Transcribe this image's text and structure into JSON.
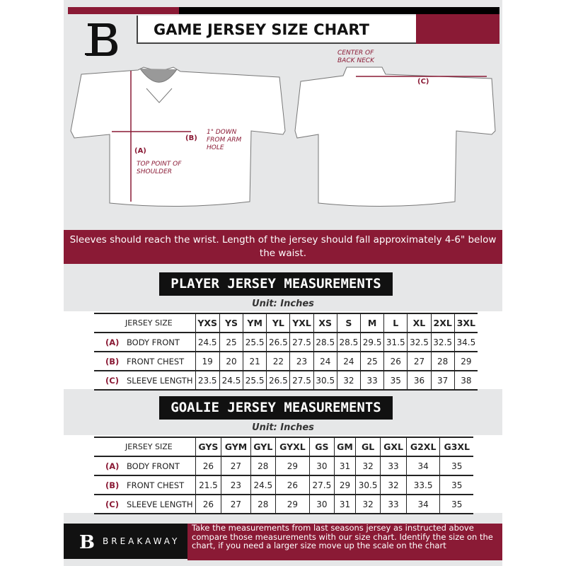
{
  "header": {
    "title": "GAME JERSEY SIZE CHART",
    "logo_letter": "B"
  },
  "diagram": {
    "front_labels": {
      "a_marker": "(A)",
      "a_note": "TOP POINT OF SHOULDER",
      "b_marker": "(B)",
      "b_note": "1\" DOWN FROM ARM HOLE"
    },
    "back_labels": {
      "c_marker": "(C)",
      "c_note": "CENTER OF BACK NECK"
    }
  },
  "banner": {
    "text": "Sleeves should reach the wrist. Length of the jersey should fall approximately 4-6\" below the waist."
  },
  "player": {
    "title": "PLAYER JERSEY MEASUREMENTS",
    "unit": "Unit: Inches",
    "size_header": "JERSEY SIZE",
    "sizes": [
      "YXS",
      "YS",
      "YM",
      "YL",
      "YXL",
      "XS",
      "S",
      "M",
      "L",
      "XL",
      "2XL",
      "3XL"
    ],
    "rows": [
      {
        "letter": "(A)",
        "label": "BODY FRONT",
        "values": [
          "24.5",
          "25",
          "25.5",
          "26.5",
          "27.5",
          "28.5",
          "28.5",
          "29.5",
          "31.5",
          "32.5",
          "32.5",
          "34.5"
        ]
      },
      {
        "letter": "(B)",
        "label": "FRONT CHEST",
        "values": [
          "19",
          "20",
          "21",
          "22",
          "23",
          "24",
          "24",
          "25",
          "26",
          "27",
          "28",
          "29"
        ]
      },
      {
        "letter": "(C)",
        "label": "SLEEVE LENGTH",
        "values": [
          "23.5",
          "24.5",
          "25.5",
          "26.5",
          "27.5",
          "30.5",
          "32",
          "33",
          "35",
          "36",
          "37",
          "38"
        ]
      }
    ]
  },
  "goalie": {
    "title": "GOALIE JERSEY MEASUREMENTS",
    "unit": "Unit: Inches",
    "size_header": "JERSEY SIZE",
    "sizes": [
      "GYS",
      "GYM",
      "GYL",
      "GYXL",
      "GS",
      "GM",
      "GL",
      "GXL",
      "G2XL",
      "G3XL"
    ],
    "rows": [
      {
        "letter": "(A)",
        "label": "BODY FRONT",
        "values": [
          "26",
          "27",
          "28",
          "29",
          "30",
          "31",
          "32",
          "33",
          "34",
          "35"
        ]
      },
      {
        "letter": "(B)",
        "label": "FRONT CHEST",
        "values": [
          "21.5",
          "23",
          "24.5",
          "26",
          "27.5",
          "29",
          "30.5",
          "32",
          "33.5",
          "35"
        ]
      },
      {
        "letter": "(C)",
        "label": "SLEEVE LENGTH",
        "values": [
          "26",
          "27",
          "28",
          "29",
          "30",
          "31",
          "32",
          "33",
          "34",
          "35"
        ]
      }
    ]
  },
  "footer": {
    "brand": "BREAKAWAY",
    "note": "Take the measurements from last seasons jersey as instructed above compare those measurements  with our size chart. Identify the size on the chart, if you need a larger size move up the scale on the chart"
  },
  "colors": {
    "accent": "#8a1a35",
    "dark": "#111111",
    "background": "#e6e7e8"
  }
}
